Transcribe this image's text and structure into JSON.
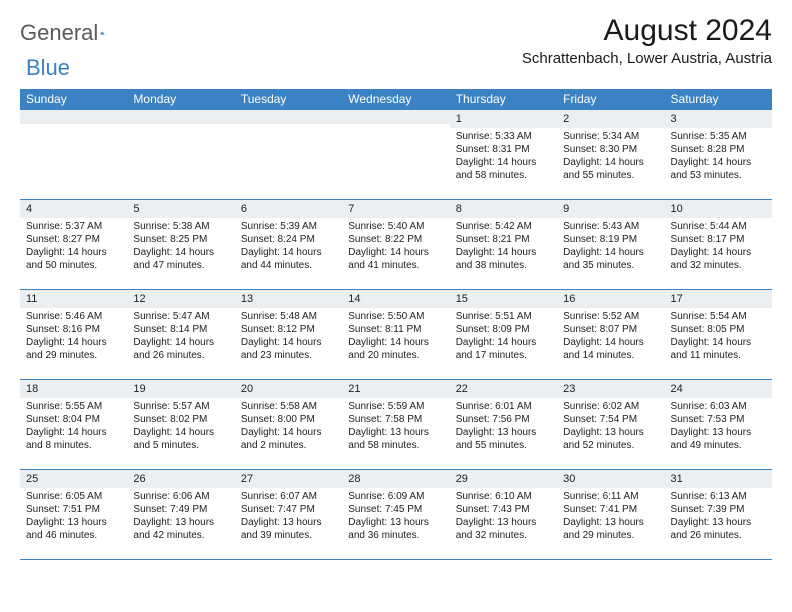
{
  "logo": {
    "part1": "General",
    "part2": "Blue"
  },
  "title": "August 2024",
  "location": "Schrattenbach, Lower Austria, Austria",
  "colors": {
    "header_bg": "#3b82c4",
    "header_text": "#ffffff",
    "daynum_bg": "#eceff1",
    "border": "#3b82c4",
    "logo_gray": "#5a5a5a",
    "logo_blue": "#3b82c4",
    "text": "#000000",
    "bg": "#ffffff"
  },
  "day_headers": [
    "Sunday",
    "Monday",
    "Tuesday",
    "Wednesday",
    "Thursday",
    "Friday",
    "Saturday"
  ],
  "weeks": [
    [
      {
        "n": "",
        "lines": []
      },
      {
        "n": "",
        "lines": []
      },
      {
        "n": "",
        "lines": []
      },
      {
        "n": "",
        "lines": []
      },
      {
        "n": "1",
        "lines": [
          "Sunrise: 5:33 AM",
          "Sunset: 8:31 PM",
          "Daylight: 14 hours and 58 minutes."
        ]
      },
      {
        "n": "2",
        "lines": [
          "Sunrise: 5:34 AM",
          "Sunset: 8:30 PM",
          "Daylight: 14 hours and 55 minutes."
        ]
      },
      {
        "n": "3",
        "lines": [
          "Sunrise: 5:35 AM",
          "Sunset: 8:28 PM",
          "Daylight: 14 hours and 53 minutes."
        ]
      }
    ],
    [
      {
        "n": "4",
        "lines": [
          "Sunrise: 5:37 AM",
          "Sunset: 8:27 PM",
          "Daylight: 14 hours and 50 minutes."
        ]
      },
      {
        "n": "5",
        "lines": [
          "Sunrise: 5:38 AM",
          "Sunset: 8:25 PM",
          "Daylight: 14 hours and 47 minutes."
        ]
      },
      {
        "n": "6",
        "lines": [
          "Sunrise: 5:39 AM",
          "Sunset: 8:24 PM",
          "Daylight: 14 hours and 44 minutes."
        ]
      },
      {
        "n": "7",
        "lines": [
          "Sunrise: 5:40 AM",
          "Sunset: 8:22 PM",
          "Daylight: 14 hours and 41 minutes."
        ]
      },
      {
        "n": "8",
        "lines": [
          "Sunrise: 5:42 AM",
          "Sunset: 8:21 PM",
          "Daylight: 14 hours and 38 minutes."
        ]
      },
      {
        "n": "9",
        "lines": [
          "Sunrise: 5:43 AM",
          "Sunset: 8:19 PM",
          "Daylight: 14 hours and 35 minutes."
        ]
      },
      {
        "n": "10",
        "lines": [
          "Sunrise: 5:44 AM",
          "Sunset: 8:17 PM",
          "Daylight: 14 hours and 32 minutes."
        ]
      }
    ],
    [
      {
        "n": "11",
        "lines": [
          "Sunrise: 5:46 AM",
          "Sunset: 8:16 PM",
          "Daylight: 14 hours and 29 minutes."
        ]
      },
      {
        "n": "12",
        "lines": [
          "Sunrise: 5:47 AM",
          "Sunset: 8:14 PM",
          "Daylight: 14 hours and 26 minutes."
        ]
      },
      {
        "n": "13",
        "lines": [
          "Sunrise: 5:48 AM",
          "Sunset: 8:12 PM",
          "Daylight: 14 hours and 23 minutes."
        ]
      },
      {
        "n": "14",
        "lines": [
          "Sunrise: 5:50 AM",
          "Sunset: 8:11 PM",
          "Daylight: 14 hours and 20 minutes."
        ]
      },
      {
        "n": "15",
        "lines": [
          "Sunrise: 5:51 AM",
          "Sunset: 8:09 PM",
          "Daylight: 14 hours and 17 minutes."
        ]
      },
      {
        "n": "16",
        "lines": [
          "Sunrise: 5:52 AM",
          "Sunset: 8:07 PM",
          "Daylight: 14 hours and 14 minutes."
        ]
      },
      {
        "n": "17",
        "lines": [
          "Sunrise: 5:54 AM",
          "Sunset: 8:05 PM",
          "Daylight: 14 hours and 11 minutes."
        ]
      }
    ],
    [
      {
        "n": "18",
        "lines": [
          "Sunrise: 5:55 AM",
          "Sunset: 8:04 PM",
          "Daylight: 14 hours and 8 minutes."
        ]
      },
      {
        "n": "19",
        "lines": [
          "Sunrise: 5:57 AM",
          "Sunset: 8:02 PM",
          "Daylight: 14 hours and 5 minutes."
        ]
      },
      {
        "n": "20",
        "lines": [
          "Sunrise: 5:58 AM",
          "Sunset: 8:00 PM",
          "Daylight: 14 hours and 2 minutes."
        ]
      },
      {
        "n": "21",
        "lines": [
          "Sunrise: 5:59 AM",
          "Sunset: 7:58 PM",
          "Daylight: 13 hours and 58 minutes."
        ]
      },
      {
        "n": "22",
        "lines": [
          "Sunrise: 6:01 AM",
          "Sunset: 7:56 PM",
          "Daylight: 13 hours and 55 minutes."
        ]
      },
      {
        "n": "23",
        "lines": [
          "Sunrise: 6:02 AM",
          "Sunset: 7:54 PM",
          "Daylight: 13 hours and 52 minutes."
        ]
      },
      {
        "n": "24",
        "lines": [
          "Sunrise: 6:03 AM",
          "Sunset: 7:53 PM",
          "Daylight: 13 hours and 49 minutes."
        ]
      }
    ],
    [
      {
        "n": "25",
        "lines": [
          "Sunrise: 6:05 AM",
          "Sunset: 7:51 PM",
          "Daylight: 13 hours and 46 minutes."
        ]
      },
      {
        "n": "26",
        "lines": [
          "Sunrise: 6:06 AM",
          "Sunset: 7:49 PM",
          "Daylight: 13 hours and 42 minutes."
        ]
      },
      {
        "n": "27",
        "lines": [
          "Sunrise: 6:07 AM",
          "Sunset: 7:47 PM",
          "Daylight: 13 hours and 39 minutes."
        ]
      },
      {
        "n": "28",
        "lines": [
          "Sunrise: 6:09 AM",
          "Sunset: 7:45 PM",
          "Daylight: 13 hours and 36 minutes."
        ]
      },
      {
        "n": "29",
        "lines": [
          "Sunrise: 6:10 AM",
          "Sunset: 7:43 PM",
          "Daylight: 13 hours and 32 minutes."
        ]
      },
      {
        "n": "30",
        "lines": [
          "Sunrise: 6:11 AM",
          "Sunset: 7:41 PM",
          "Daylight: 13 hours and 29 minutes."
        ]
      },
      {
        "n": "31",
        "lines": [
          "Sunrise: 6:13 AM",
          "Sunset: 7:39 PM",
          "Daylight: 13 hours and 26 minutes."
        ]
      }
    ]
  ]
}
